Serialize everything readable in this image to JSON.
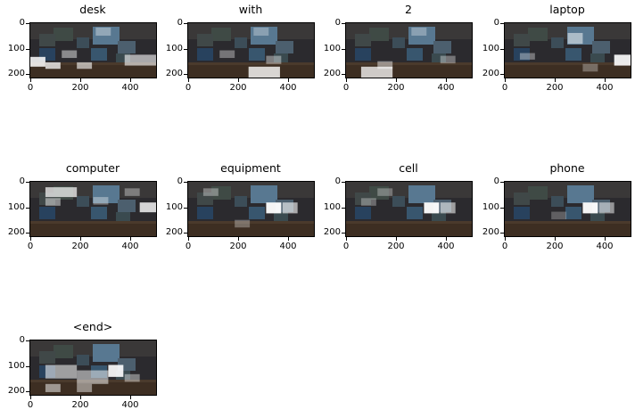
{
  "panels": [
    {
      "title": "desk",
      "highlights": [
        [
          0,
          0.62,
          0.12,
          0.18,
          0.85
        ],
        [
          0.12,
          0.72,
          0.12,
          0.12,
          0.75
        ],
        [
          0.37,
          0.72,
          0.12,
          0.12,
          0.6
        ],
        [
          0.75,
          0.58,
          0.25,
          0.2,
          0.6
        ],
        [
          0.52,
          0.08,
          0.12,
          0.15,
          0.35
        ],
        [
          0.25,
          0.5,
          0.12,
          0.14,
          0.45
        ]
      ]
    },
    {
      "title": "with",
      "highlights": [
        [
          0.48,
          0.8,
          0.25,
          0.2,
          0.8
        ],
        [
          0.62,
          0.6,
          0.12,
          0.15,
          0.4
        ],
        [
          0.25,
          0.5,
          0.12,
          0.14,
          0.35
        ],
        [
          0.52,
          0.08,
          0.12,
          0.15,
          0.3
        ]
      ]
    },
    {
      "title": "2",
      "highlights": [
        [
          0.12,
          0.8,
          0.25,
          0.2,
          0.75
        ],
        [
          0.25,
          0.7,
          0.12,
          0.14,
          0.45
        ],
        [
          0.52,
          0.08,
          0.12,
          0.15,
          0.3
        ],
        [
          0.75,
          0.6,
          0.12,
          0.14,
          0.35
        ]
      ]
    },
    {
      "title": "laptop",
      "highlights": [
        [
          0.87,
          0.58,
          0.13,
          0.2,
          0.9
        ],
        [
          0.5,
          0.18,
          0.12,
          0.2,
          0.5
        ],
        [
          0.12,
          0.55,
          0.12,
          0.12,
          0.35
        ],
        [
          0.62,
          0.75,
          0.12,
          0.14,
          0.3
        ]
      ]
    },
    {
      "title": "computer",
      "highlights": [
        [
          0.12,
          0.1,
          0.25,
          0.18,
          0.7
        ],
        [
          0.12,
          0.3,
          0.12,
          0.14,
          0.45
        ],
        [
          0.87,
          0.38,
          0.13,
          0.18,
          0.8
        ],
        [
          0.5,
          0.28,
          0.12,
          0.14,
          0.35
        ],
        [
          0.75,
          0.12,
          0.12,
          0.14,
          0.35
        ]
      ]
    },
    {
      "title": "equipment",
      "highlights": [
        [
          0.62,
          0.38,
          0.12,
          0.2,
          0.95
        ],
        [
          0.75,
          0.38,
          0.12,
          0.2,
          0.6
        ],
        [
          0.12,
          0.12,
          0.12,
          0.14,
          0.35
        ],
        [
          0.37,
          0.7,
          0.12,
          0.14,
          0.3
        ]
      ]
    },
    {
      "title": "cell",
      "highlights": [
        [
          0.62,
          0.38,
          0.12,
          0.2,
          0.95
        ],
        [
          0.75,
          0.38,
          0.12,
          0.2,
          0.55
        ],
        [
          0.25,
          0.12,
          0.12,
          0.14,
          0.3
        ],
        [
          0.12,
          0.3,
          0.12,
          0.14,
          0.3
        ]
      ]
    },
    {
      "title": "phone",
      "highlights": [
        [
          0.62,
          0.38,
          0.12,
          0.2,
          0.95
        ],
        [
          0.75,
          0.38,
          0.12,
          0.2,
          0.5
        ],
        [
          0.37,
          0.55,
          0.12,
          0.14,
          0.25
        ]
      ]
    },
    {
      "title": "<end>",
      "highlights": [
        [
          0.62,
          0.45,
          0.12,
          0.22,
          0.9
        ],
        [
          0.12,
          0.45,
          0.25,
          0.25,
          0.55
        ],
        [
          0.37,
          0.55,
          0.25,
          0.25,
          0.5
        ],
        [
          0.12,
          0.8,
          0.12,
          0.15,
          0.5
        ],
        [
          0.37,
          0.8,
          0.12,
          0.15,
          0.45
        ],
        [
          0.75,
          0.62,
          0.12,
          0.14,
          0.4
        ]
      ]
    }
  ],
  "yticks": [
    "0",
    "100",
    "200"
  ],
  "xticks": [
    "0",
    "200",
    "400"
  ],
  "colors": {
    "photo_dark": "#2b2a2e",
    "screen": "#4f6f86",
    "highlight": "#ffffff"
  }
}
